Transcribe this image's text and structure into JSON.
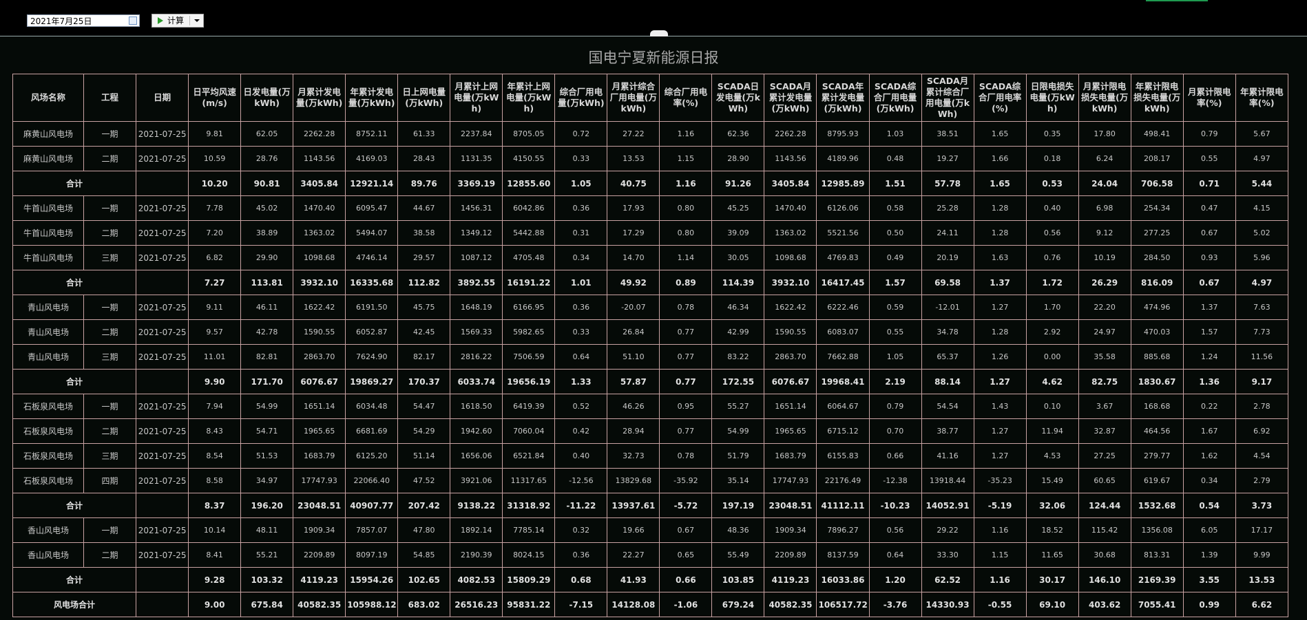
{
  "toolbar": {
    "date": "2021年7月25日",
    "button": "计算"
  },
  "report": {
    "title": "国电宁夏新能源日报",
    "headers": [
      "风场名称",
      "工程",
      "日期",
      "日平均风速(m/s)",
      "日发电量(万kWh)",
      "月累计发电量(万kWh)",
      "年累计发电量(万kWh)",
      "日上网电量(万kWh)",
      "月累计上网电量(万kWh)",
      "年累计上网电量(万kWh)",
      "综合厂用电量(万kWh)",
      "月累计综合厂用电量(万kWh)",
      "综合厂用电率(%)",
      "SCADA日发电量(万kWh)",
      "SCADA月累计发电量(万kWh)",
      "SCADA年累计发电量(万kWh)",
      "SCADA综合厂用电量(万kWh)",
      "SCADA月累计综合厂用电量(万kWh)",
      "SCADA综合厂用电率(%)",
      "日限电损失电量(万kWh)",
      "月累计限电损失电量(万kWh)",
      "年累计限电损失电量(万kWh)",
      "月累计限电率(%)",
      "年累计限电率(%)"
    ],
    "rows": [
      [
        "麻黄山风电场",
        "一期",
        "2021-07-25",
        "9.81",
        "62.05",
        "2262.28",
        "8752.11",
        "61.33",
        "2237.84",
        "8705.05",
        "0.72",
        "27.22",
        "1.16",
        "62.36",
        "2262.28",
        "8795.93",
        "1.03",
        "38.51",
        "1.65",
        "0.35",
        "17.80",
        "498.41",
        "0.79",
        "5.67"
      ],
      [
        "麻黄山风电场",
        "二期",
        "2021-07-25",
        "10.59",
        "28.76",
        "1143.56",
        "4169.03",
        "28.43",
        "1131.35",
        "4150.55",
        "0.33",
        "13.53",
        "1.15",
        "28.90",
        "1143.56",
        "4189.96",
        "0.48",
        "19.27",
        "1.66",
        "0.18",
        "6.24",
        "208.17",
        "0.55",
        "4.97"
      ],
      {
        "label": "合计",
        "values": [
          "10.20",
          "90.81",
          "3405.84",
          "12921.14",
          "89.76",
          "3369.19",
          "12855.60",
          "1.05",
          "40.75",
          "1.16",
          "91.26",
          "3405.84",
          "12985.89",
          "1.51",
          "57.78",
          "1.65",
          "0.53",
          "24.04",
          "706.58",
          "0.71",
          "5.44"
        ]
      },
      [
        "牛首山风电场",
        "一期",
        "2021-07-25",
        "7.78",
        "45.02",
        "1470.40",
        "6095.47",
        "44.67",
        "1456.31",
        "6042.86",
        "0.36",
        "17.93",
        "0.80",
        "45.25",
        "1470.40",
        "6126.06",
        "0.58",
        "25.28",
        "1.28",
        "0.40",
        "6.98",
        "254.34",
        "0.47",
        "4.15"
      ],
      [
        "牛首山风电场",
        "二期",
        "2021-07-25",
        "7.20",
        "38.89",
        "1363.02",
        "5494.07",
        "38.58",
        "1349.12",
        "5442.88",
        "0.31",
        "17.29",
        "0.80",
        "39.09",
        "1363.02",
        "5521.56",
        "0.50",
        "24.11",
        "1.28",
        "0.56",
        "9.12",
        "277.25",
        "0.67",
        "5.02"
      ],
      [
        "牛首山风电场",
        "三期",
        "2021-07-25",
        "6.82",
        "29.90",
        "1098.68",
        "4746.14",
        "29.57",
        "1087.12",
        "4705.48",
        "0.34",
        "14.70",
        "1.14",
        "30.05",
        "1098.68",
        "4769.83",
        "0.49",
        "20.19",
        "1.63",
        "0.76",
        "10.19",
        "284.50",
        "0.93",
        "5.96"
      ],
      {
        "label": "合计",
        "values": [
          "7.27",
          "113.81",
          "3932.10",
          "16335.68",
          "112.82",
          "3892.55",
          "16191.22",
          "1.01",
          "49.92",
          "0.89",
          "114.39",
          "3932.10",
          "16417.45",
          "1.57",
          "69.58",
          "1.37",
          "1.72",
          "26.29",
          "816.09",
          "0.67",
          "4.97"
        ]
      },
      [
        "青山风电场",
        "一期",
        "2021-07-25",
        "9.11",
        "46.11",
        "1622.42",
        "6191.50",
        "45.75",
        "1648.19",
        "6166.95",
        "0.36",
        "-20.07",
        "0.78",
        "46.34",
        "1622.42",
        "6222.46",
        "0.59",
        "-12.01",
        "1.27",
        "1.70",
        "22.20",
        "474.96",
        "1.37",
        "7.63"
      ],
      [
        "青山风电场",
        "二期",
        "2021-07-25",
        "9.57",
        "42.78",
        "1590.55",
        "6052.87",
        "42.45",
        "1569.33",
        "5982.65",
        "0.33",
        "26.84",
        "0.77",
        "42.99",
        "1590.55",
        "6083.07",
        "0.55",
        "34.78",
        "1.28",
        "2.92",
        "24.97",
        "470.03",
        "1.57",
        "7.73"
      ],
      [
        "青山风电场",
        "三期",
        "2021-07-25",
        "11.01",
        "82.81",
        "2863.70",
        "7624.90",
        "82.17",
        "2816.22",
        "7506.59",
        "0.64",
        "51.10",
        "0.77",
        "83.22",
        "2863.70",
        "7662.88",
        "1.05",
        "65.37",
        "1.26",
        "0.00",
        "35.58",
        "885.68",
        "1.24",
        "11.56"
      ],
      {
        "label": "合计",
        "values": [
          "9.90",
          "171.70",
          "6076.67",
          "19869.27",
          "170.37",
          "6033.74",
          "19656.19",
          "1.33",
          "57.87",
          "0.77",
          "172.55",
          "6076.67",
          "19968.41",
          "2.19",
          "88.14",
          "1.27",
          "4.62",
          "82.75",
          "1830.67",
          "1.36",
          "9.17"
        ]
      },
      [
        "石板泉风电场",
        "一期",
        "2021-07-25",
        "7.94",
        "54.99",
        "1651.14",
        "6034.48",
        "54.47",
        "1618.50",
        "6419.39",
        "0.52",
        "46.26",
        "0.95",
        "55.27",
        "1651.14",
        "6064.67",
        "0.79",
        "54.54",
        "1.43",
        "0.10",
        "3.67",
        "168.68",
        "0.22",
        "2.78"
      ],
      [
        "石板泉风电场",
        "二期",
        "2021-07-25",
        "8.43",
        "54.71",
        "1965.65",
        "6681.69",
        "54.29",
        "1942.60",
        "7060.04",
        "0.42",
        "28.94",
        "0.77",
        "54.99",
        "1965.65",
        "6715.12",
        "0.70",
        "38.77",
        "1.27",
        "11.94",
        "32.87",
        "464.56",
        "1.67",
        "6.92"
      ],
      [
        "石板泉风电场",
        "三期",
        "2021-07-25",
        "8.54",
        "51.53",
        "1683.79",
        "6125.20",
        "51.14",
        "1656.06",
        "6521.84",
        "0.40",
        "32.73",
        "0.78",
        "51.79",
        "1683.79",
        "6155.83",
        "0.66",
        "41.16",
        "1.27",
        "4.53",
        "27.25",
        "279.77",
        "1.62",
        "4.54"
      ],
      [
        "石板泉风电场",
        "四期",
        "2021-07-25",
        "8.58",
        "34.97",
        "17747.93",
        "22066.40",
        "47.52",
        "3921.06",
        "11317.65",
        "-12.56",
        "13829.68",
        "-35.92",
        "35.14",
        "17747.93",
        "22176.49",
        "-12.38",
        "13918.44",
        "-35.23",
        "15.49",
        "60.65",
        "619.67",
        "0.34",
        "2.79"
      ],
      {
        "label": "合计",
        "values": [
          "8.37",
          "196.20",
          "23048.51",
          "40907.77",
          "207.42",
          "9138.22",
          "31318.92",
          "-11.22",
          "13937.61",
          "-5.72",
          "197.19",
          "23048.51",
          "41112.11",
          "-10.23",
          "14052.91",
          "-5.19",
          "32.06",
          "124.44",
          "1532.68",
          "0.54",
          "3.73"
        ]
      },
      [
        "香山风电场",
        "一期",
        "2021-07-25",
        "10.14",
        "48.11",
        "1909.34",
        "7857.07",
        "47.80",
        "1892.14",
        "7785.14",
        "0.32",
        "19.66",
        "0.67",
        "48.36",
        "1909.34",
        "7896.27",
        "0.56",
        "29.22",
        "1.16",
        "18.52",
        "115.42",
        "1356.08",
        "6.05",
        "17.17"
      ],
      [
        "香山风电场",
        "二期",
        "2021-07-25",
        "8.41",
        "55.21",
        "2209.89",
        "8097.19",
        "54.85",
        "2190.39",
        "8024.15",
        "0.36",
        "22.27",
        "0.65",
        "55.49",
        "2209.89",
        "8137.59",
        "0.64",
        "33.30",
        "1.15",
        "11.65",
        "30.68",
        "813.31",
        "1.39",
        "9.99"
      ],
      {
        "label": "合计",
        "values": [
          "9.28",
          "103.32",
          "4119.23",
          "15954.26",
          "102.65",
          "4082.53",
          "15809.29",
          "0.68",
          "41.93",
          "0.66",
          "103.85",
          "4119.23",
          "16033.86",
          "1.20",
          "62.52",
          "1.16",
          "30.17",
          "146.10",
          "2169.39",
          "3.55",
          "13.53"
        ]
      },
      {
        "label": "风电场合计",
        "values": [
          "9.00",
          "675.84",
          "40582.35",
          "105988.12",
          "683.02",
          "26516.23",
          "95831.22",
          "-7.15",
          "14128.08",
          "-1.06",
          "679.24",
          "40582.35",
          "106517.72",
          "-3.76",
          "14330.93",
          "-0.55",
          "69.10",
          "403.62",
          "7055.41",
          "0.99",
          "6.62"
        ]
      }
    ]
  }
}
